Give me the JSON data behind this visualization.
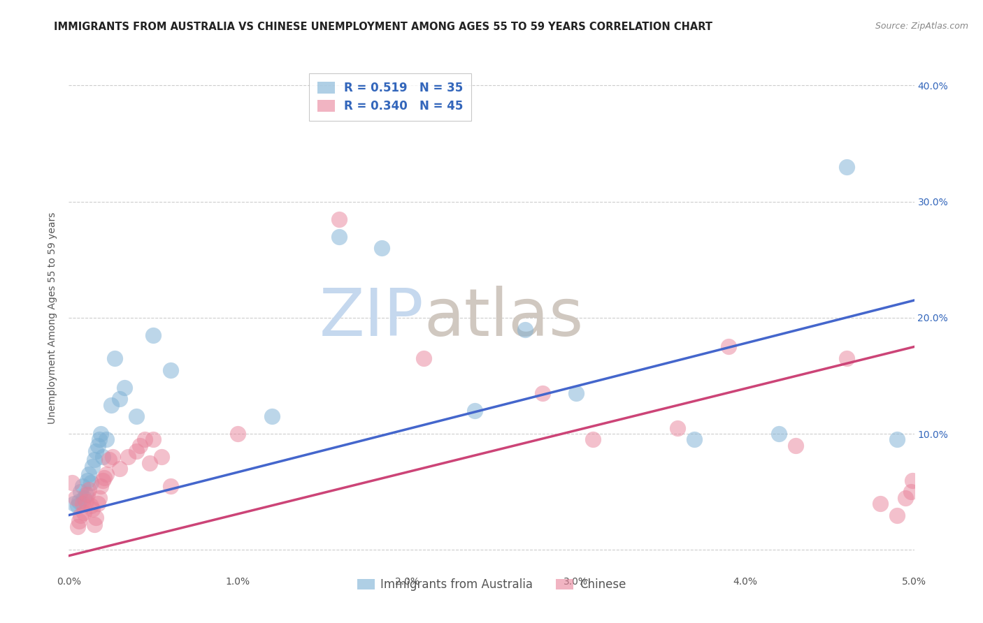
{
  "title": "IMMIGRANTS FROM AUSTRALIA VS CHINESE UNEMPLOYMENT AMONG AGES 55 TO 59 YEARS CORRELATION CHART",
  "source": "Source: ZipAtlas.com",
  "ylabel": "Unemployment Among Ages 55 to 59 years",
  "xlim": [
    0.0,
    0.05
  ],
  "ylim": [
    -0.02,
    0.42
  ],
  "series1_name": "Immigrants from Australia",
  "series2_name": "Chinese",
  "series1_color": "#7bafd4",
  "series2_color": "#e8829a",
  "series1_R": "0.519",
  "series1_N": "35",
  "series2_R": "0.340",
  "series2_N": "45",
  "series1_x": [
    0.0003,
    0.0005,
    0.0006,
    0.0007,
    0.0008,
    0.0009,
    0.001,
    0.0011,
    0.0012,
    0.0013,
    0.0014,
    0.0015,
    0.0016,
    0.0017,
    0.0018,
    0.0019,
    0.002,
    0.0022,
    0.0025,
    0.0027,
    0.003,
    0.0033,
    0.004,
    0.005,
    0.006,
    0.012,
    0.016,
    0.0185,
    0.024,
    0.027,
    0.03,
    0.037,
    0.042,
    0.046,
    0.049
  ],
  "series1_y": [
    0.04,
    0.038,
    0.042,
    0.05,
    0.055,
    0.045,
    0.048,
    0.06,
    0.065,
    0.058,
    0.072,
    0.078,
    0.085,
    0.09,
    0.095,
    0.1,
    0.08,
    0.095,
    0.125,
    0.165,
    0.13,
    0.14,
    0.115,
    0.185,
    0.155,
    0.115,
    0.27,
    0.26,
    0.12,
    0.19,
    0.135,
    0.095,
    0.1,
    0.33,
    0.095
  ],
  "series2_x": [
    0.0002,
    0.0004,
    0.0005,
    0.0006,
    0.0007,
    0.0008,
    0.0009,
    0.001,
    0.0011,
    0.0012,
    0.0013,
    0.0014,
    0.0015,
    0.0016,
    0.0017,
    0.0018,
    0.0019,
    0.002,
    0.0021,
    0.0022,
    0.0024,
    0.0026,
    0.003,
    0.0035,
    0.004,
    0.0042,
    0.0045,
    0.0048,
    0.005,
    0.0055,
    0.006,
    0.01,
    0.016,
    0.021,
    0.028,
    0.031,
    0.036,
    0.039,
    0.043,
    0.046,
    0.048,
    0.049,
    0.0495,
    0.0498,
    0.0499
  ],
  "series2_y": [
    0.058,
    0.045,
    0.02,
    0.025,
    0.03,
    0.04,
    0.032,
    0.042,
    0.048,
    0.052,
    0.038,
    0.035,
    0.022,
    0.028,
    0.04,
    0.045,
    0.055,
    0.06,
    0.062,
    0.065,
    0.078,
    0.08,
    0.07,
    0.08,
    0.085,
    0.09,
    0.095,
    0.075,
    0.095,
    0.08,
    0.055,
    0.1,
    0.285,
    0.165,
    0.135,
    0.095,
    0.105,
    0.175,
    0.09,
    0.165,
    0.04,
    0.03,
    0.045,
    0.05,
    0.06
  ],
  "line1_x0": 0.0,
  "line1_y0": 0.03,
  "line1_x1": 0.05,
  "line1_y1": 0.215,
  "line2_x0": 0.0,
  "line2_y0": -0.005,
  "line2_x1": 0.05,
  "line2_y1": 0.175,
  "yticks": [
    0.0,
    0.1,
    0.2,
    0.3,
    0.4
  ],
  "ytick_labels": [
    "",
    "10.0%",
    "20.0%",
    "30.0%",
    "40.0%"
  ],
  "xtick_labels": [
    "0.0%",
    "1.0%",
    "2.0%",
    "3.0%",
    "4.0%",
    "5.0%"
  ],
  "watermark_zip": "ZIP",
  "watermark_atlas": "atlas",
  "watermark_color": "#d0dff0",
  "background_color": "#ffffff",
  "title_fontsize": 10.5,
  "axis_label_fontsize": 10,
  "tick_fontsize": 10,
  "legend_fontsize": 12,
  "source_fontsize": 9,
  "line1_color": "#4466cc",
  "line2_color": "#cc4477"
}
